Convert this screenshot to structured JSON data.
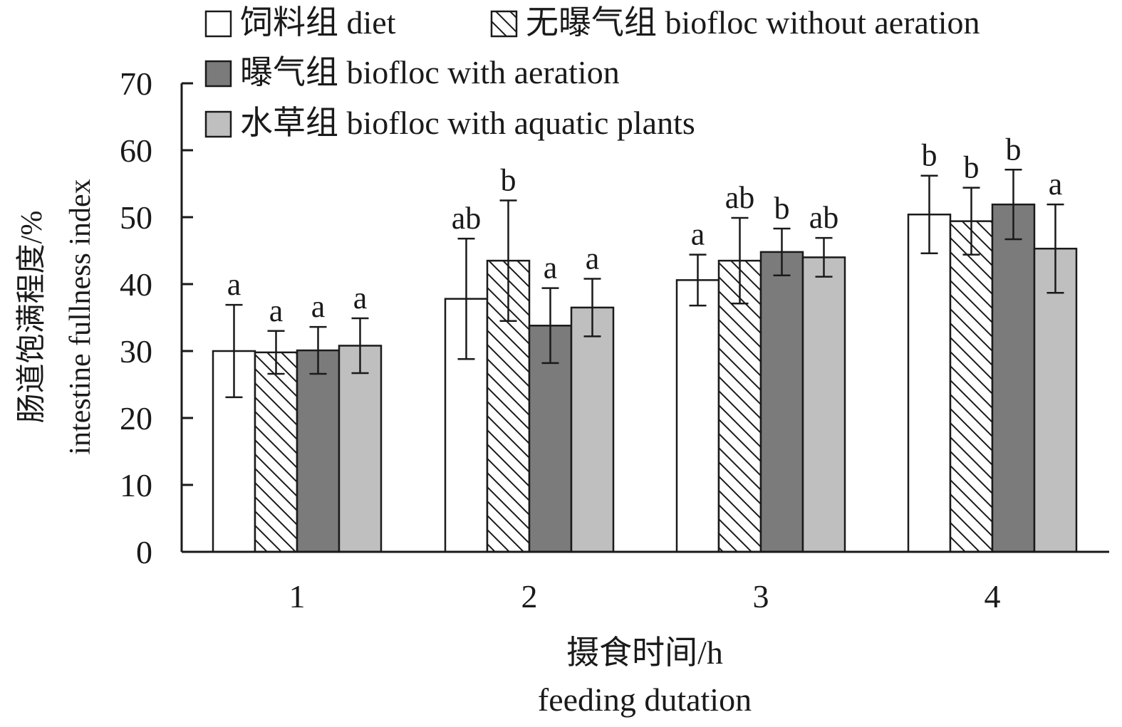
{
  "chart_data": {
    "type": "bar",
    "categories": [
      "1",
      "2",
      "3",
      "4"
    ],
    "xlabel_cn": "摄食时间/h",
    "xlabel_en": "feeding dutation",
    "ylabel_cn": "肠道饱满程度/%",
    "ylabel_en": "intestine fullness index",
    "ylim": [
      0,
      70
    ],
    "yticks": [
      "0",
      "10",
      "20",
      "30",
      "40",
      "50",
      "60",
      "70"
    ],
    "grid": false,
    "legend_position": "top-left",
    "series": [
      {
        "name": "饲料组 diet",
        "style": "white",
        "values": [
          30,
          37.8,
          40.6,
          50.4
        ],
        "errors": [
          6.9,
          9.0,
          3.8,
          5.8
        ],
        "labels": [
          "a",
          "ab",
          "a",
          "b"
        ]
      },
      {
        "name": "无曝气组 biofloc without aeration",
        "style": "hatched",
        "values": [
          29.8,
          43.5,
          43.5,
          49.4
        ],
        "errors": [
          3.2,
          9.0,
          6.4,
          5.0
        ],
        "labels": [
          "a",
          "b",
          "ab",
          "b"
        ]
      },
      {
        "name": "曝气组 biofloc with aeration",
        "style": "dark",
        "values": [
          30.1,
          33.8,
          44.8,
          51.9
        ],
        "errors": [
          3.5,
          5.6,
          3.5,
          5.2
        ],
        "labels": [
          "a",
          "a",
          "b",
          "b"
        ]
      },
      {
        "name": "水草组 biofloc with aquatic plants",
        "style": "light",
        "values": [
          30.8,
          36.5,
          44.0,
          45.3
        ],
        "errors": [
          4.1,
          4.3,
          2.9,
          6.6
        ],
        "labels": [
          "a",
          "a",
          "ab",
          "a"
        ]
      }
    ],
    "colors": {
      "white": "#ffffff",
      "hatched": "#ffffff",
      "dark": "#7b7b7b",
      "light": "#bfbfbf",
      "stroke": "#1a1a1a"
    }
  }
}
